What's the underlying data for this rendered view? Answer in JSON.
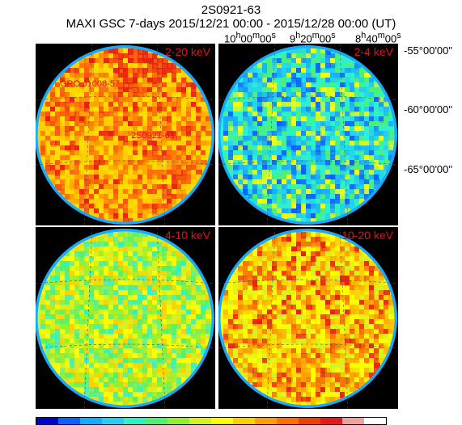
{
  "title": "2S0921-63",
  "subtitle": "MAXI GSC 7-days 2015/12/21 00:00 - 2015/12/28 00:00 (UT)",
  "ra_labels": [
    {
      "h": "10",
      "m": "00",
      "s": "00"
    },
    {
      "h": "9",
      "m": "20",
      "s": "00"
    },
    {
      "h": "8",
      "m": "40",
      "s": "00"
    }
  ],
  "dec_labels": [
    "-55°00'00\"",
    "-60°00'00\"",
    "-65°00'00\""
  ],
  "panels": [
    {
      "band": "2-20 keV",
      "scheme": "hot"
    },
    {
      "band": "2-4 keV",
      "scheme": "cool"
    },
    {
      "band": "4-10 keV",
      "scheme": "mid"
    },
    {
      "band": "10-20 keV",
      "scheme": "warm"
    }
  ],
  "sources": [
    "GRO J1008-57",
    "2S0921-63"
  ],
  "colorbar": [
    "#0000c8",
    "#0a5fff",
    "#18aaff",
    "#20d0f0",
    "#30f0c8",
    "#50f070",
    "#90f030",
    "#d8f020",
    "#ffff00",
    "#ffd000",
    "#ffa000",
    "#ff7000",
    "#f04000",
    "#e81818",
    "#f0a0a0",
    "#ffffff"
  ]
}
